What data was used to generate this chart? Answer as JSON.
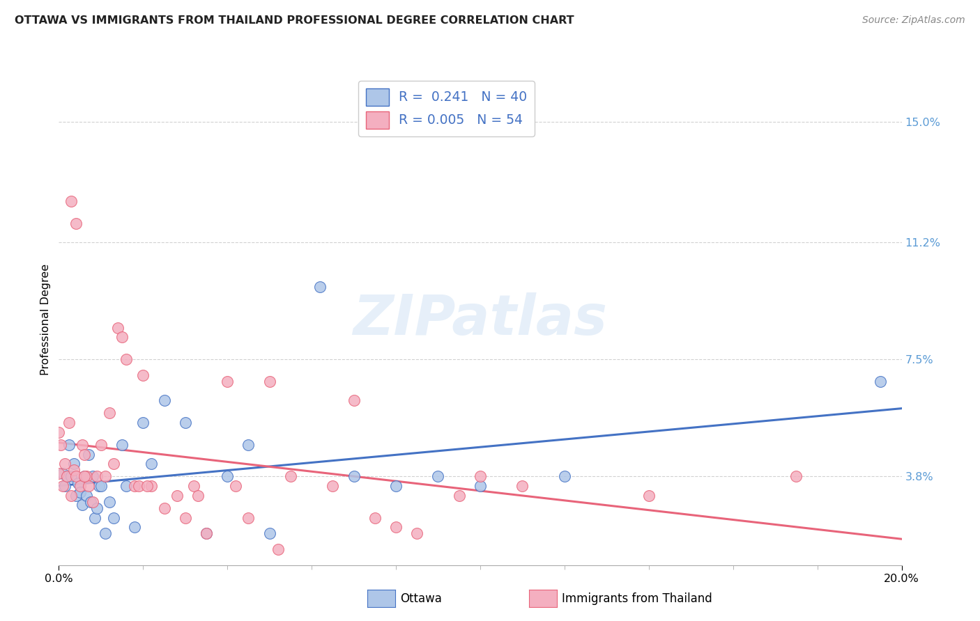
{
  "title": "OTTAWA VS IMMIGRANTS FROM THAILAND PROFESSIONAL DEGREE CORRELATION CHART",
  "source": "Source: ZipAtlas.com",
  "ylabel": "Professional Degree",
  "ytick_values": [
    3.8,
    7.5,
    11.2,
    15.0
  ],
  "xlim": [
    0.0,
    20.0
  ],
  "ylim": [
    1.0,
    16.5
  ],
  "color_ottawa": "#aec6e8",
  "color_thailand": "#f4afc0",
  "color_ottawa_line": "#4472c4",
  "color_thailand_line": "#e8647a",
  "color_title": "#222222",
  "color_source": "#888888",
  "color_yticks": "#5b9bd5",
  "ottawa_x": [
    0.1,
    0.15,
    0.2,
    0.25,
    0.3,
    0.35,
    0.4,
    0.45,
    0.5,
    0.55,
    0.6,
    0.65,
    0.7,
    0.75,
    0.8,
    0.85,
    0.9,
    0.95,
    1.0,
    1.1,
    1.2,
    1.3,
    1.5,
    1.6,
    1.8,
    2.0,
    2.2,
    2.5,
    3.0,
    3.5,
    4.0,
    5.0,
    6.2,
    10.0,
    19.5,
    7.0,
    8.0,
    9.0,
    12.0,
    4.5
  ],
  "ottawa_y": [
    3.9,
    3.5,
    3.8,
    4.8,
    3.8,
    4.2,
    3.2,
    3.6,
    3.3,
    2.9,
    3.8,
    3.2,
    4.5,
    3.0,
    3.8,
    2.5,
    2.8,
    3.5,
    3.5,
    2.0,
    3.0,
    2.5,
    4.8,
    3.5,
    2.2,
    5.5,
    4.2,
    6.2,
    5.5,
    2.0,
    3.8,
    2.0,
    9.8,
    3.5,
    6.8,
    3.8,
    3.5,
    3.8,
    3.8,
    4.8
  ],
  "thailand_x": [
    0.0,
    0.0,
    0.05,
    0.1,
    0.15,
    0.2,
    0.25,
    0.3,
    0.35,
    0.4,
    0.5,
    0.55,
    0.6,
    0.65,
    0.7,
    0.8,
    0.9,
    1.0,
    1.1,
    1.2,
    1.3,
    1.4,
    1.5,
    1.6,
    1.8,
    2.0,
    2.2,
    2.5,
    2.8,
    3.0,
    3.2,
    3.5,
    4.0,
    4.5,
    5.0,
    5.5,
    6.5,
    7.0,
    8.0,
    9.5,
    10.0,
    11.0,
    14.0,
    17.5,
    5.2,
    0.3,
    0.4,
    1.9,
    0.6,
    4.2,
    7.5,
    8.5,
    3.3,
    2.1
  ],
  "thailand_y": [
    3.9,
    5.2,
    4.8,
    3.5,
    4.2,
    3.8,
    5.5,
    3.2,
    4.0,
    3.8,
    3.5,
    4.8,
    4.5,
    3.8,
    3.5,
    3.0,
    3.8,
    4.8,
    3.8,
    5.8,
    4.2,
    8.5,
    8.2,
    7.5,
    3.5,
    7.0,
    3.5,
    2.8,
    3.2,
    2.5,
    3.5,
    2.0,
    6.8,
    2.5,
    6.8,
    3.8,
    3.5,
    6.2,
    2.2,
    3.2,
    3.8,
    3.5,
    3.2,
    3.8,
    1.5,
    12.5,
    11.8,
    3.5,
    3.8,
    3.5,
    2.5,
    2.0,
    3.2,
    3.5
  ]
}
